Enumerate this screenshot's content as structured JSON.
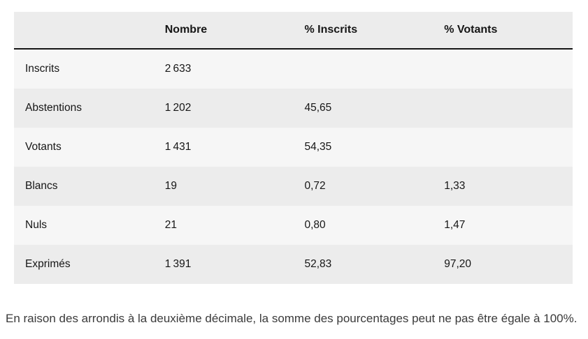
{
  "table": {
    "headers": [
      "Nombre",
      "% Inscrits",
      "% Votants"
    ],
    "rows": [
      {
        "label": "Inscrits",
        "nombre": "2 633",
        "pct_inscrits": "",
        "pct_votants": ""
      },
      {
        "label": "Abstentions",
        "nombre": "1 202",
        "pct_inscrits": "45,65",
        "pct_votants": ""
      },
      {
        "label": "Votants",
        "nombre": "1 431",
        "pct_inscrits": "54,35",
        "pct_votants": ""
      },
      {
        "label": "Blancs",
        "nombre": "19",
        "pct_inscrits": "0,72",
        "pct_votants": "1,33"
      },
      {
        "label": "Nuls",
        "nombre": "21",
        "pct_inscrits": "0,80",
        "pct_votants": "1,47"
      },
      {
        "label": "Exprimés",
        "nombre": "1 391",
        "pct_inscrits": "52,83",
        "pct_votants": "97,20"
      }
    ]
  },
  "footnote": "En raison des arrondis à la deuxième décimale, la somme des pourcentages peut ne pas être égale à 100%."
}
